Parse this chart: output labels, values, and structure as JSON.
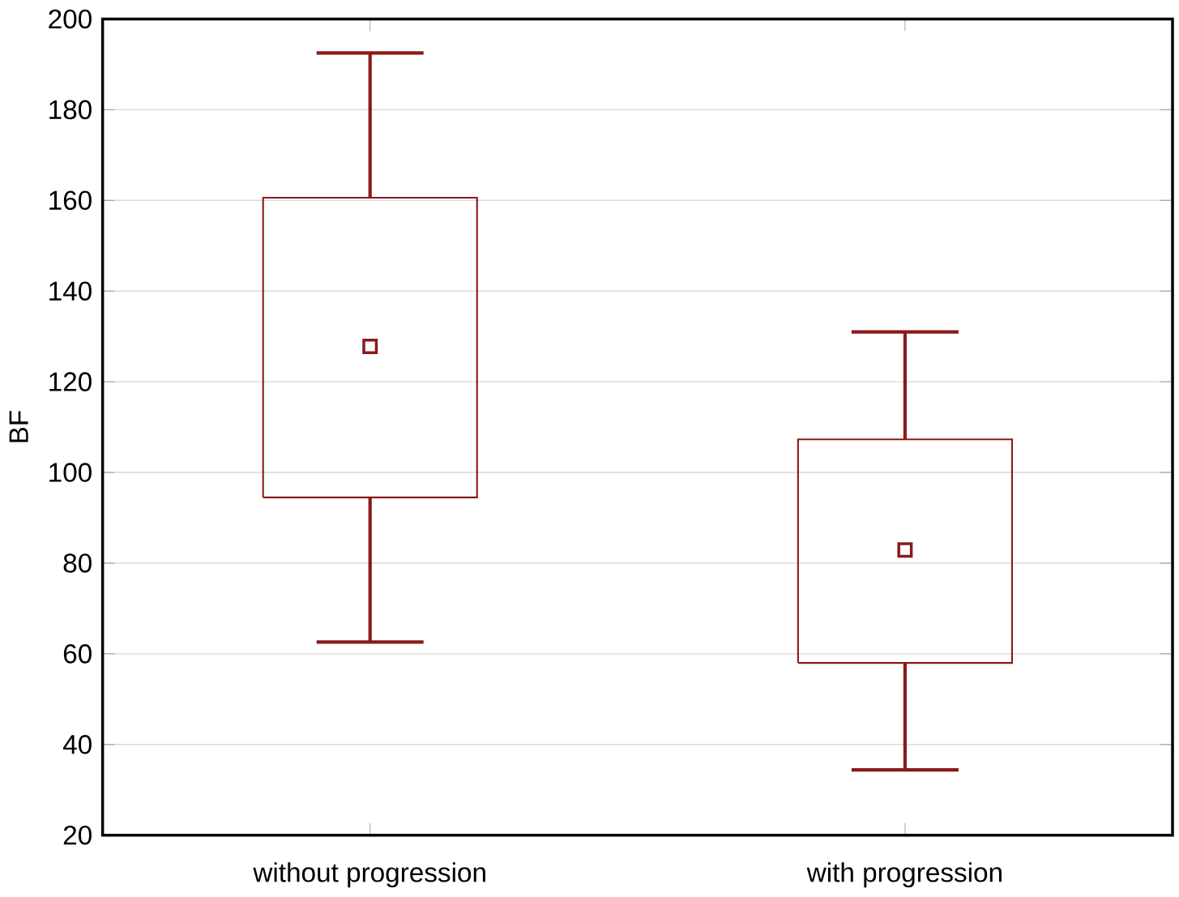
{
  "chart_data": {
    "type": "box",
    "ylabel": "BF",
    "categories": [
      "without progression",
      "with progression"
    ],
    "boxes": [
      {
        "low": 62.6,
        "q1": 94.5,
        "median": 127.8,
        "q3": 160.6,
        "high": 192.5
      },
      {
        "low": 34.4,
        "q1": 58.0,
        "median": 82.9,
        "q3": 107.3,
        "high": 131.0
      }
    ],
    "color": "#8b1a1a",
    "marker": "square",
    "ylim": [
      20,
      200
    ],
    "yticks": [
      20,
      40,
      60,
      80,
      100,
      120,
      140,
      160,
      180,
      200
    ],
    "grid": "y"
  }
}
